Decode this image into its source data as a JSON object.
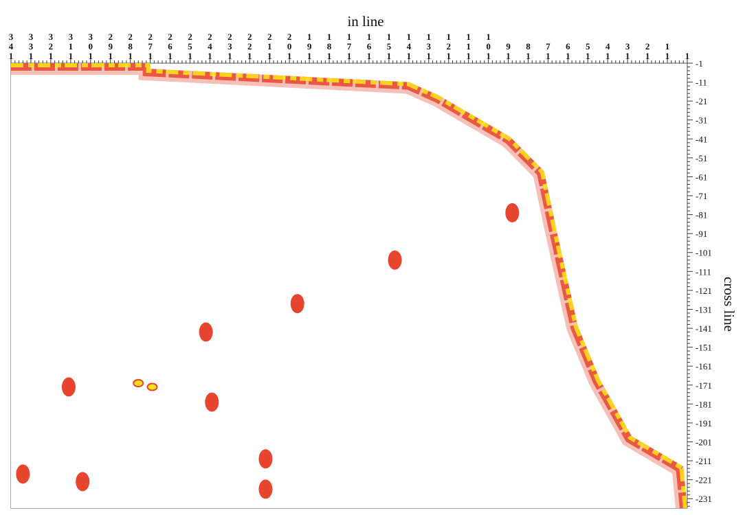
{
  "chart_data": {
    "type": "heatmap",
    "title": "",
    "xlabel": "in line",
    "ylabel": "cross line",
    "x_tick_labels": [
      "341",
      "331",
      "321",
      "311",
      "301",
      "291",
      "281",
      "271",
      "261",
      "251",
      "241",
      "231",
      "221",
      "211",
      "201",
      "191",
      "181",
      "171",
      "161",
      "151",
      "141",
      "131",
      "121",
      "111",
      "101",
      "91",
      "81",
      "71",
      "61",
      "51",
      "41",
      "31",
      "21",
      "11",
      "1"
    ],
    "y_tick_labels": [
      "1",
      "11",
      "21",
      "31",
      "41",
      "51",
      "61",
      "71",
      "81",
      "91",
      "101",
      "111",
      "121",
      "131",
      "141",
      "151",
      "161",
      "171",
      "181",
      "191",
      "201",
      "211",
      "221",
      "231"
    ],
    "xlim": [
      341,
      1
    ],
    "ylim": [
      1,
      236
    ],
    "boundary_outline": [
      {
        "inline": 341,
        "crossline": 1
      },
      {
        "inline": 271,
        "crossline": 1
      },
      {
        "inline": 271,
        "crossline": 4
      },
      {
        "inline": 141,
        "crossline": 11
      },
      {
        "inline": 126,
        "crossline": 18
      },
      {
        "inline": 90,
        "crossline": 40
      },
      {
        "inline": 73,
        "crossline": 58
      },
      {
        "inline": 67,
        "crossline": 88
      },
      {
        "inline": 56,
        "crossline": 140
      },
      {
        "inline": 45,
        "crossline": 168
      },
      {
        "inline": 29,
        "crossline": 198
      },
      {
        "inline": 3,
        "crossline": 214
      },
      {
        "inline": 1,
        "crossline": 236
      },
      {
        "inline": 341,
        "crossline": 236
      }
    ],
    "levels": [
      {
        "name": "background",
        "color": "#ffffff"
      },
      {
        "name": "low",
        "color": "#f7c5c3"
      },
      {
        "name": "medium",
        "color": "#ef8c7d"
      },
      {
        "name": "high",
        "color": "#e8452e"
      },
      {
        "name": "highest",
        "color": "#ffe01b"
      }
    ],
    "hotspots": [
      {
        "inline": 312,
        "crossline": 172,
        "level": "high"
      },
      {
        "inline": 277,
        "crossline": 170,
        "level": "highest"
      },
      {
        "inline": 270,
        "crossline": 172,
        "level": "highest"
      },
      {
        "inline": 213,
        "crossline": 226,
        "level": "high"
      },
      {
        "inline": 213,
        "crossline": 210,
        "level": "high"
      },
      {
        "inline": 197,
        "crossline": 128,
        "level": "high"
      },
      {
        "inline": 243,
        "crossline": 143,
        "level": "high"
      },
      {
        "inline": 148,
        "crossline": 105,
        "level": "high"
      },
      {
        "inline": 305,
        "crossline": 222,
        "level": "high"
      },
      {
        "inline": 89,
        "crossline": 80,
        "level": "high"
      },
      {
        "inline": 240,
        "crossline": 180,
        "level": "high"
      },
      {
        "inline": 335,
        "crossline": 218,
        "level": "high"
      }
    ]
  }
}
